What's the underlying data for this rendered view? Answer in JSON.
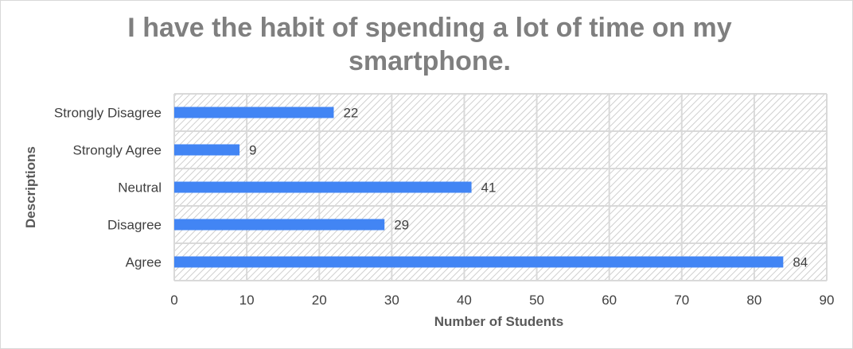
{
  "chart_data": {
    "type": "bar",
    "orientation": "horizontal",
    "title": "I have the habit of spending a lot of time on my smartphone.",
    "xlabel": "Number of Students",
    "ylabel": "Descriptions",
    "categories": [
      "Strongly Disagree",
      "Strongly Agree",
      "Neutral",
      "Disagree",
      "Agree"
    ],
    "values": [
      22,
      9,
      41,
      29,
      84
    ],
    "xlim": [
      0,
      90
    ],
    "x_ticks": [
      0,
      10,
      20,
      30,
      40,
      50,
      60,
      70,
      80,
      90
    ],
    "grid": true,
    "legend": "none",
    "colors": {
      "bar": "#4285f4",
      "grid": "#d9d9d9",
      "plot_hatch": "#d0d0d0",
      "title": "#7f7f7f"
    }
  }
}
